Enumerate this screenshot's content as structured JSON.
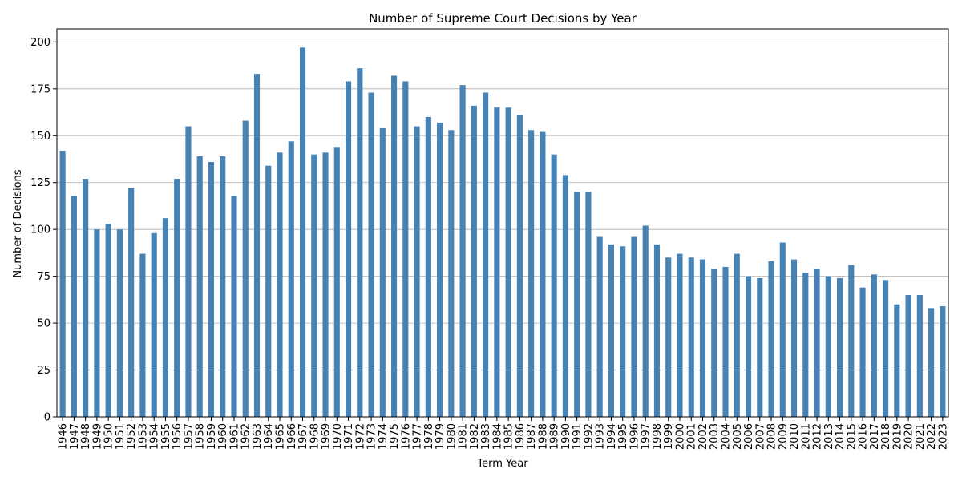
{
  "chart_data": {
    "type": "bar",
    "title": "Number of Supreme Court Decisions by Year",
    "xlabel": "Term Year",
    "ylabel": "Number of Decisions",
    "ylim": [
      0,
      207
    ],
    "yticks": [
      0,
      25,
      50,
      75,
      100,
      125,
      150,
      175,
      200
    ],
    "grid": "y",
    "bar_color": "#4682b4",
    "categories": [
      "1946",
      "1947",
      "1948",
      "1949",
      "1950",
      "1951",
      "1952",
      "1953",
      "1954",
      "1955",
      "1956",
      "1957",
      "1958",
      "1959",
      "1960",
      "1961",
      "1962",
      "1963",
      "1964",
      "1965",
      "1966",
      "1967",
      "1968",
      "1969",
      "1970",
      "1971",
      "1972",
      "1973",
      "1974",
      "1975",
      "1976",
      "1977",
      "1978",
      "1979",
      "1980",
      "1981",
      "1982",
      "1983",
      "1984",
      "1985",
      "1986",
      "1987",
      "1988",
      "1989",
      "1990",
      "1991",
      "1992",
      "1993",
      "1994",
      "1995",
      "1996",
      "1997",
      "1998",
      "1999",
      "2000",
      "2001",
      "2002",
      "2003",
      "2004",
      "2005",
      "2006",
      "2007",
      "2008",
      "2009",
      "2010",
      "2011",
      "2012",
      "2013",
      "2014",
      "2015",
      "2016",
      "2017",
      "2018",
      "2019",
      "2020",
      "2021",
      "2022",
      "2023"
    ],
    "values": [
      142,
      118,
      127,
      100,
      103,
      100,
      122,
      87,
      98,
      106,
      127,
      155,
      139,
      136,
      139,
      118,
      158,
      183,
      134,
      141,
      147,
      197,
      140,
      141,
      144,
      179,
      186,
      173,
      154,
      182,
      179,
      155,
      160,
      157,
      153,
      177,
      166,
      173,
      165,
      165,
      161,
      153,
      152,
      140,
      129,
      120,
      120,
      96,
      92,
      91,
      96,
      102,
      92,
      85,
      87,
      85,
      84,
      79,
      80,
      87,
      75,
      74,
      83,
      93,
      84,
      77,
      79,
      75,
      74,
      81,
      69,
      76,
      73,
      60,
      65,
      65,
      58,
      59
    ]
  }
}
